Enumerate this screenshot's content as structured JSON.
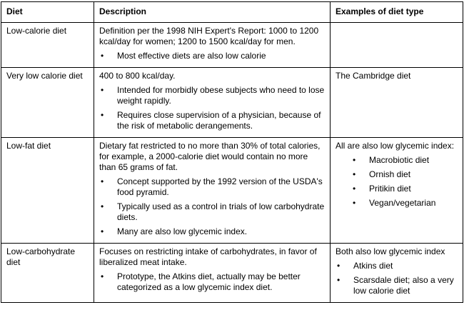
{
  "table": {
    "headers": [
      "Diet",
      "Description",
      "Examples of diet type"
    ],
    "rows": [
      {
        "diet": "Low-calorie diet",
        "description": "Definition per the 1998 NIH Expert's Report: 1000 to 1200 kcal/day for women; 1200 to 1500 kcal/day for men.",
        "bullets": [
          "Most effective diets are also low calorie"
        ],
        "examples_intro": "",
        "examples": []
      },
      {
        "diet": "Very low calorie diet",
        "description": "400 to 800 kcal/day.",
        "bullets": [
          "Intended for morbidly obese subjects who need to lose weight rapidly.",
          "Requires close supervision of a physician, because of the risk of metabolic derangements."
        ],
        "examples_intro": "The Cambridge diet",
        "examples": []
      },
      {
        "diet": "Low-fat diet",
        "description": "Dietary fat restricted to no more than 30% of total calories, for example, a 2000-calorie diet would contain no more than 65 grams of fat.",
        "bullets": [
          "Concept supported by the 1992 version of the USDA's food pyramid.",
          "Typically used as a control in trials of low carbohydrate diets.",
          "Many are also low glycemic index."
        ],
        "examples_intro": "All are also low glycemic index:",
        "examples": [
          "Macrobiotic diet",
          "Ornish diet",
          "Pritikin diet",
          "Vegan/vegetarian"
        ]
      },
      {
        "diet": "Low-carbohydrate diet",
        "description": "Focuses on restricting intake of carbohydrates, in favor of liberalized meat intake.",
        "bullets": [
          "Prototype, the Atkins diet, actually may be better categorized as a low glycemic index diet."
        ],
        "examples_intro": "Both also low glycemic index",
        "examples": [
          "Atkins diet",
          "Scarsdale diet; also a very low calorie diet"
        ]
      }
    ]
  }
}
